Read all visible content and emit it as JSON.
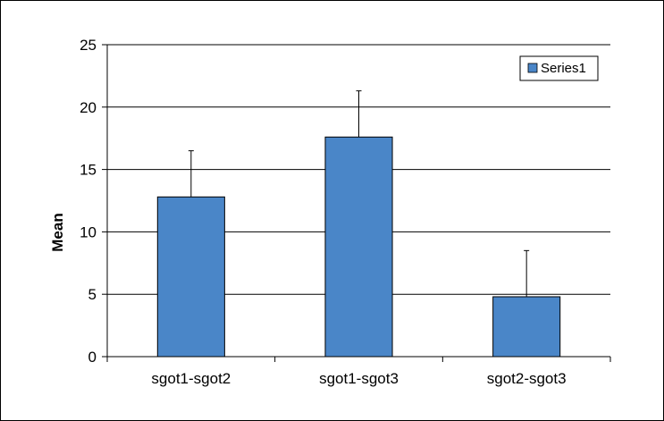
{
  "chart_data": {
    "type": "bar",
    "title": "",
    "xlabel": "",
    "ylabel": "Mean",
    "categories": [
      "sgot1-sgot2",
      "sgot1-sgot3",
      "sgot2-sgot3"
    ],
    "series": [
      {
        "name": "Series1",
        "values": [
          12.8,
          17.6,
          4.8
        ],
        "error_plus": [
          3.7,
          3.7,
          3.7
        ],
        "color": "#4a86c8"
      }
    ],
    "ylim": [
      0,
      25
    ],
    "yticks": [
      0,
      5,
      10,
      15,
      20,
      25
    ],
    "grid": true,
    "legend_position": "top-right"
  }
}
